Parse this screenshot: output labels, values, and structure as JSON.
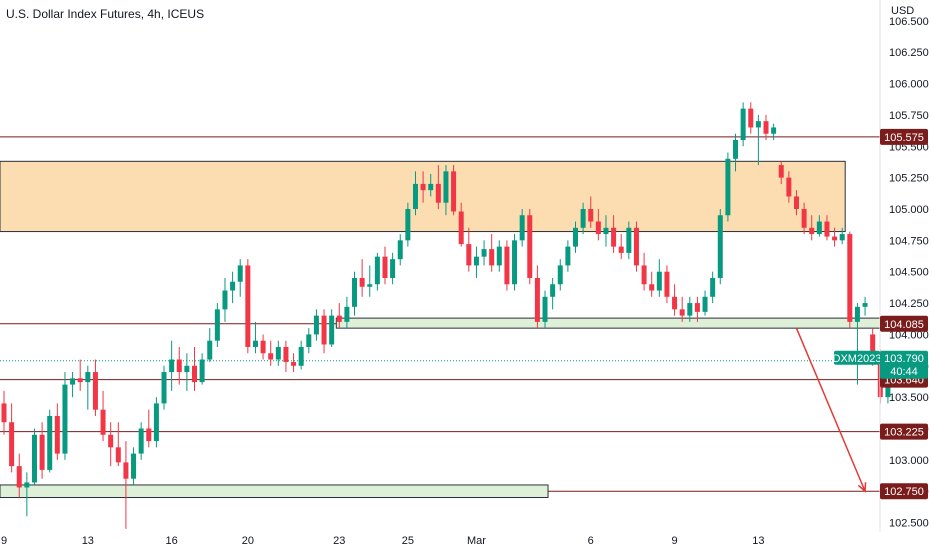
{
  "header": {
    "title": "U.S. Dollar Index Futures, 4h, ICEUS"
  },
  "colors": {
    "up": "#089981",
    "down": "#f23645",
    "level_line": "#7a1c1c",
    "zone_fill": "#fcd9a8",
    "zone_stroke": "#2a2e39",
    "green_zone_fill": "#dff0d8",
    "projection": "#e53935"
  },
  "chart_data": {
    "type": "candlestick",
    "symbol": "DXM2023",
    "y_unit": "USD",
    "ylim": [
      102.425,
      106.65
    ],
    "yticks": [
      102.5,
      102.75,
      103.0,
      103.25,
      103.5,
      103.75,
      104.0,
      104.25,
      104.5,
      104.75,
      105.0,
      105.25,
      105.5,
      105.75,
      106.0,
      106.25,
      106.5
    ],
    "ytick_labels": [
      "102.500",
      "102.750",
      "103.000",
      "103.250",
      "103.500",
      "103.750",
      "104.000",
      "104.250",
      "104.500",
      "104.750",
      "105.000",
      "105.250",
      "105.500",
      "105.750",
      "106.000",
      "106.250",
      "106.500"
    ],
    "x_labels": [
      {
        "label": "9",
        "bar": 0
      },
      {
        "label": "13",
        "bar": 11
      },
      {
        "label": "16",
        "bar": 22
      },
      {
        "label": "20",
        "bar": 32
      },
      {
        "label": "23",
        "bar": 44
      },
      {
        "label": "25",
        "bar": 53
      },
      {
        "label": "Mar",
        "bar": 62
      },
      {
        "label": "6",
        "bar": 77
      },
      {
        "label": "9",
        "bar": 88
      },
      {
        "label": "13",
        "bar": 99
      }
    ],
    "candles": [
      [
        103.45,
        103.55,
        103.2,
        103.3
      ],
      [
        103.3,
        103.45,
        102.9,
        102.95
      ],
      [
        102.95,
        103.05,
        102.7,
        102.78
      ],
      [
        102.78,
        102.9,
        102.55,
        102.82
      ],
      [
        102.82,
        103.25,
        102.8,
        103.2
      ],
      [
        103.2,
        103.3,
        102.85,
        102.92
      ],
      [
        102.92,
        103.4,
        102.9,
        103.35
      ],
      [
        103.35,
        103.45,
        103.0,
        103.05
      ],
      [
        103.05,
        103.7,
        103.0,
        103.6
      ],
      [
        103.6,
        103.7,
        103.5,
        103.65
      ],
      [
        103.65,
        103.8,
        103.55,
        103.62
      ],
      [
        103.62,
        103.75,
        103.4,
        103.7
      ],
      [
        103.7,
        103.8,
        103.35,
        103.4
      ],
      [
        103.4,
        103.55,
        103.15,
        103.2
      ],
      [
        103.2,
        103.3,
        102.95,
        103.1
      ],
      [
        103.1,
        103.3,
        102.95,
        102.98
      ],
      [
        102.98,
        103.15,
        102.45,
        102.85
      ],
      [
        102.85,
        103.1,
        102.8,
        103.05
      ],
      [
        103.05,
        103.3,
        103.0,
        103.25
      ],
      [
        103.25,
        103.4,
        103.1,
        103.15
      ],
      [
        103.15,
        103.5,
        103.1,
        103.45
      ],
      [
        103.45,
        103.75,
        103.4,
        103.7
      ],
      [
        103.7,
        103.95,
        103.55,
        103.8
      ],
      [
        103.8,
        103.9,
        103.6,
        103.7
      ],
      [
        103.7,
        103.85,
        103.55,
        103.75
      ],
      [
        103.75,
        103.9,
        103.55,
        103.62
      ],
      [
        103.62,
        103.85,
        103.6,
        103.8
      ],
      [
        103.8,
        104.05,
        103.78,
        103.95
      ],
      [
        103.95,
        104.25,
        103.9,
        104.2
      ],
      [
        104.2,
        104.45,
        104.1,
        104.35
      ],
      [
        104.35,
        104.5,
        104.25,
        104.42
      ],
      [
        104.42,
        104.6,
        104.3,
        104.55
      ],
      [
        104.55,
        104.6,
        103.85,
        103.9
      ],
      [
        103.9,
        104.1,
        103.85,
        103.95
      ],
      [
        103.95,
        104.0,
        103.8,
        103.85
      ],
      [
        103.85,
        103.95,
        103.75,
        103.8
      ],
      [
        103.8,
        103.95,
        103.75,
        103.9
      ],
      [
        103.9,
        103.95,
        103.7,
        103.78
      ],
      [
        103.78,
        103.85,
        103.7,
        103.75
      ],
      [
        103.75,
        103.95,
        103.72,
        103.9
      ],
      [
        103.9,
        104.05,
        103.85,
        104.0
      ],
      [
        104.0,
        104.2,
        103.95,
        104.15
      ],
      [
        104.15,
        104.2,
        103.85,
        103.92
      ],
      [
        103.92,
        104.2,
        103.9,
        104.15
      ],
      [
        104.15,
        104.25,
        104.05,
        104.1
      ],
      [
        104.1,
        104.3,
        104.05,
        104.22
      ],
      [
        104.22,
        104.5,
        104.15,
        104.45
      ],
      [
        104.45,
        104.6,
        104.3,
        104.38
      ],
      [
        104.38,
        104.55,
        104.3,
        104.4
      ],
      [
        104.4,
        104.65,
        104.35,
        104.62
      ],
      [
        104.62,
        104.7,
        104.4,
        104.45
      ],
      [
        104.45,
        104.65,
        104.4,
        104.6
      ],
      [
        104.6,
        104.8,
        104.55,
        104.75
      ],
      [
        104.75,
        105.05,
        104.7,
        105.0
      ],
      [
        105.0,
        105.3,
        104.95,
        105.2
      ],
      [
        105.2,
        105.3,
        105.05,
        105.15
      ],
      [
        105.15,
        105.28,
        105.1,
        105.2
      ],
      [
        105.2,
        105.35,
        105.0,
        105.05
      ],
      [
        105.05,
        105.35,
        104.95,
        105.3
      ],
      [
        105.3,
        105.35,
        104.95,
        104.98
      ],
      [
        104.98,
        105.05,
        104.7,
        104.72
      ],
      [
        104.72,
        104.85,
        104.5,
        104.55
      ],
      [
        104.55,
        104.7,
        104.45,
        104.62
      ],
      [
        104.62,
        104.75,
        104.55,
        104.68
      ],
      [
        104.68,
        104.8,
        104.5,
        104.55
      ],
      [
        104.55,
        104.75,
        104.5,
        104.7
      ],
      [
        104.7,
        104.75,
        104.35,
        104.4
      ],
      [
        104.4,
        104.8,
        104.35,
        104.75
      ],
      [
        104.75,
        105.0,
        104.7,
        104.95
      ],
      [
        104.95,
        105.0,
        104.4,
        104.45
      ],
      [
        104.45,
        104.55,
        104.05,
        104.1
      ],
      [
        104.1,
        104.35,
        104.05,
        104.3
      ],
      [
        104.3,
        104.45,
        104.2,
        104.4
      ],
      [
        104.4,
        104.6,
        104.35,
        104.55
      ],
      [
        104.55,
        104.75,
        104.5,
        104.7
      ],
      [
        104.7,
        104.9,
        104.65,
        104.85
      ],
      [
        104.85,
        105.05,
        104.8,
        105.0
      ],
      [
        105.0,
        105.1,
        104.85,
        104.9
      ],
      [
        104.9,
        105.0,
        104.75,
        104.8
      ],
      [
        104.8,
        104.95,
        104.7,
        104.85
      ],
      [
        104.85,
        104.95,
        104.65,
        104.7
      ],
      [
        104.7,
        104.8,
        104.6,
        104.65
      ],
      [
        104.65,
        104.9,
        104.6,
        104.85
      ],
      [
        104.85,
        104.9,
        104.5,
        104.55
      ],
      [
        104.55,
        104.65,
        104.35,
        104.4
      ],
      [
        104.4,
        104.5,
        104.3,
        104.35
      ],
      [
        104.35,
        104.6,
        104.3,
        104.5
      ],
      [
        104.5,
        104.55,
        104.25,
        104.3
      ],
      [
        104.3,
        104.4,
        104.15,
        104.2
      ],
      [
        104.2,
        104.3,
        104.1,
        104.15
      ],
      [
        104.15,
        104.3,
        104.1,
        104.25
      ],
      [
        104.25,
        104.3,
        104.1,
        104.18
      ],
      [
        104.18,
        104.35,
        104.15,
        104.3
      ],
      [
        104.3,
        104.5,
        104.25,
        104.45
      ],
      [
        104.45,
        105.0,
        104.4,
        104.95
      ],
      [
        104.95,
        105.45,
        104.9,
        105.4
      ],
      [
        105.4,
        105.6,
        105.3,
        105.55
      ],
      [
        105.55,
        105.85,
        105.5,
        105.8
      ],
      [
        105.8,
        105.85,
        105.6,
        105.65
      ],
      [
        105.65,
        105.75,
        105.35,
        105.7
      ],
      [
        105.7,
        105.75,
        105.55,
        105.6
      ],
      [
        105.6,
        105.68,
        105.55,
        105.65
      ],
      [
        105.35,
        105.38,
        105.2,
        105.25
      ],
      [
        105.25,
        105.3,
        105.05,
        105.1
      ],
      [
        105.1,
        105.15,
        104.95,
        105.0
      ],
      [
        105.0,
        105.05,
        104.8,
        104.85
      ],
      [
        104.85,
        104.95,
        104.75,
        104.8
      ],
      [
        104.8,
        104.95,
        104.78,
        104.9
      ],
      [
        104.9,
        104.95,
        104.75,
        104.78
      ],
      [
        104.78,
        104.85,
        104.7,
        104.75
      ],
      [
        104.75,
        104.85,
        104.72,
        104.8
      ],
      [
        104.8,
        104.82,
        104.05,
        104.1
      ],
      [
        104.1,
        104.25,
        103.6,
        104.22
      ],
      [
        104.22,
        104.3,
        104.15,
        104.25
      ],
      [
        104.0,
        104.05,
        103.75,
        103.8
      ],
      [
        103.8,
        103.88,
        103.45,
        103.5
      ],
      [
        103.5,
        103.8,
        103.45,
        103.79
      ]
    ],
    "levels": [
      {
        "price": 105.575,
        "label": "105.575"
      },
      {
        "price": 104.085,
        "label": "104.085"
      },
      {
        "price": 103.64,
        "label": "103.640"
      },
      {
        "price": 103.225,
        "label": "103.225"
      },
      {
        "price": 102.75,
        "label": "102.750"
      }
    ],
    "resistance_zone": {
      "from_bar": 0,
      "to_bar": 110,
      "low": 104.82,
      "high": 105.38
    },
    "support_zones": [
      {
        "from_bar": 44,
        "to_bar": 117,
        "low": 104.05,
        "high": 104.13
      },
      {
        "from_bar": 0,
        "to_bar": 71,
        "low": 102.7,
        "high": 102.8
      }
    ],
    "projection": {
      "from_bar": 104,
      "from_price": 104.05,
      "to_bar": 113,
      "to_price": 102.75
    },
    "current_price": {
      "symbol": "DXM2023",
      "price": 103.79,
      "price_label": "103.790",
      "countdown": "40:44"
    }
  }
}
